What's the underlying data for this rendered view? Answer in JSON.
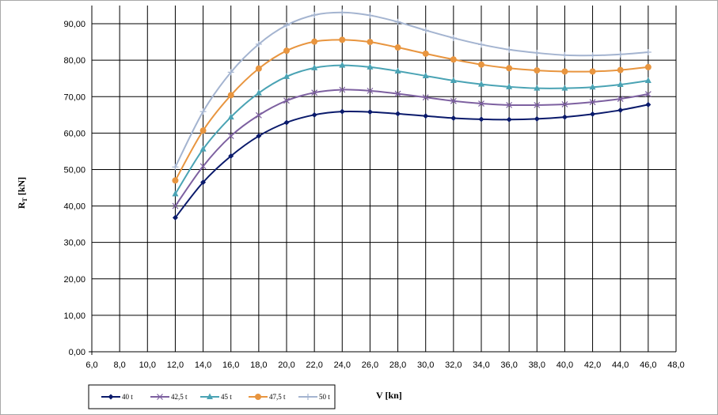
{
  "chart_data": {
    "type": "line",
    "title": "",
    "xlabel": "V [kn]",
    "ylabel_main": "R",
    "ylabel_sub": "T",
    "ylabel_unit": " [kN]",
    "xlim": [
      6,
      48
    ],
    "ylim": [
      0,
      95
    ],
    "xticks": [
      6,
      8,
      10,
      12,
      14,
      16,
      18,
      20,
      22,
      24,
      26,
      28,
      30,
      32,
      34,
      36,
      38,
      40,
      42,
      44,
      46,
      48
    ],
    "xtick_labels": [
      "6,0",
      "8,0",
      "10,0",
      "12,0",
      "14,0",
      "16,0",
      "18,0",
      "20,0",
      "22,0",
      "24,0",
      "26,0",
      "28,0",
      "30,0",
      "32,0",
      "34,0",
      "36,0",
      "38,0",
      "40,0",
      "42,0",
      "44,0",
      "46,0",
      "48,0"
    ],
    "yticks": [
      0,
      10,
      20,
      30,
      40,
      50,
      60,
      70,
      80,
      90
    ],
    "ytick_labels": [
      "0,00",
      "10,00",
      "20,00",
      "30,00",
      "40,00",
      "50,00",
      "60,00",
      "70,00",
      "80,00",
      "90,00"
    ],
    "grid": true,
    "legend_position": "bottom-left",
    "x": [
      12,
      14,
      16,
      18,
      20,
      22,
      24,
      26,
      28,
      30,
      32,
      34,
      36,
      38,
      40,
      42,
      44,
      46
    ],
    "series": [
      {
        "name": "40 t",
        "color": "#0a1a6b",
        "marker": "diamond",
        "values": [
          36.8,
          46.5,
          53.7,
          59.2,
          62.9,
          65.0,
          65.9,
          65.8,
          65.3,
          64.7,
          64.1,
          63.8,
          63.7,
          63.9,
          64.4,
          65.2,
          66.3,
          67.8
        ]
      },
      {
        "name": "42,5 t",
        "color": "#7d60a0",
        "marker": "x",
        "values": [
          40.0,
          50.9,
          59.2,
          64.9,
          68.9,
          71.1,
          71.9,
          71.6,
          70.8,
          69.8,
          68.8,
          68.1,
          67.7,
          67.7,
          67.9,
          68.5,
          69.4,
          70.7
        ]
      },
      {
        "name": "45 t",
        "color": "#4aa3b4",
        "marker": "triangle",
        "values": [
          43.3,
          55.6,
          64.4,
          71.0,
          75.5,
          77.9,
          78.6,
          78.1,
          77.0,
          75.7,
          74.4,
          73.4,
          72.7,
          72.3,
          72.3,
          72.6,
          73.3,
          74.4
        ]
      },
      {
        "name": "47,5 t",
        "color": "#e8953f",
        "marker": "circle",
        "values": [
          47.0,
          60.7,
          70.4,
          77.7,
          82.6,
          85.1,
          85.6,
          85.0,
          83.5,
          81.8,
          80.2,
          78.8,
          77.8,
          77.2,
          76.9,
          76.9,
          77.3,
          78.1
        ]
      },
      {
        "name": "50 t",
        "color": "#a4b4d0",
        "marker": "plus",
        "values": [
          50.7,
          65.9,
          76.7,
          84.4,
          89.6,
          92.4,
          93.1,
          92.3,
          90.5,
          88.2,
          86.1,
          84.3,
          82.9,
          82.0,
          81.4,
          81.3,
          81.6,
          82.2
        ]
      }
    ]
  }
}
